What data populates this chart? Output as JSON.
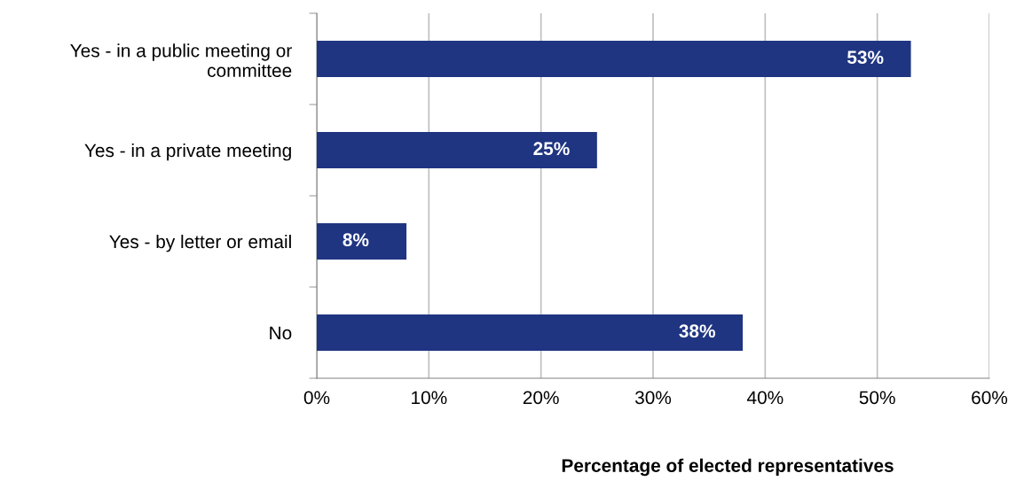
{
  "chart_data": {
    "type": "bar",
    "orientation": "horizontal",
    "categories": [
      "Yes - in a public meeting or\ncommittee",
      "Yes - in a private meeting",
      "Yes - by letter or email",
      "No"
    ],
    "values": [
      53,
      25,
      8,
      38
    ],
    "value_labels": [
      "53%",
      "25%",
      "8%",
      "38%"
    ],
    "color": "#1f3582",
    "xlabel": "Percentage of elected representatives",
    "xlim": [
      0,
      60
    ],
    "xticks": [
      {
        "value": 0,
        "label": "0%"
      },
      {
        "value": 10,
        "label": "10%"
      },
      {
        "value": 20,
        "label": "20%"
      },
      {
        "value": 30,
        "label": "30%"
      },
      {
        "value": 40,
        "label": "40%"
      },
      {
        "value": 50,
        "label": "50%"
      },
      {
        "value": 60,
        "label": "60%"
      }
    ],
    "grid": "x"
  }
}
